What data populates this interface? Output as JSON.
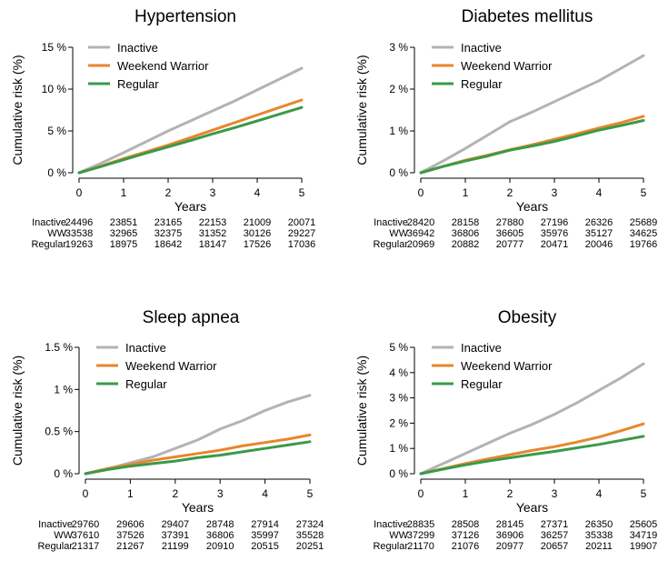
{
  "chart_data": [
    {
      "type": "line",
      "title": "Hypertension",
      "xlabel": "Years",
      "ylabel": "Cumulative risk (%)",
      "xlim": [
        0,
        5
      ],
      "ylim": [
        0,
        15
      ],
      "x_ticks": [
        "0",
        "1",
        "2",
        "3",
        "4",
        "5"
      ],
      "y_ticks": [
        {
          "value": 0,
          "label": "0 %"
        },
        {
          "value": 5,
          "label": "5 %"
        },
        {
          "value": 10,
          "label": "10 %"
        },
        {
          "value": 15,
          "label": "15 %"
        }
      ],
      "legend_position": "top-left",
      "series": [
        {
          "name": "Inactive",
          "color": "#b3b3b3",
          "x": [
            0,
            0.5,
            1,
            1.5,
            2,
            2.5,
            3,
            3.5,
            4,
            4.5,
            5
          ],
          "y": [
            0,
            1.15,
            2.4,
            3.7,
            5.0,
            6.2,
            7.4,
            8.6,
            9.9,
            11.2,
            12.5
          ]
        },
        {
          "name": "Weekend Warrior",
          "color": "#e8862c",
          "x": [
            0,
            0.5,
            1,
            1.5,
            2,
            2.5,
            3,
            3.5,
            4,
            4.5,
            5
          ],
          "y": [
            0,
            0.8,
            1.7,
            2.5,
            3.3,
            4.2,
            5.1,
            6.0,
            6.9,
            7.8,
            8.7
          ]
        },
        {
          "name": "Regular",
          "color": "#3a9a48",
          "x": [
            0,
            0.5,
            1,
            1.5,
            2,
            2.5,
            3,
            3.5,
            4,
            4.5,
            5
          ],
          "y": [
            0,
            0.75,
            1.55,
            2.35,
            3.1,
            3.85,
            4.65,
            5.4,
            6.2,
            7.0,
            7.8
          ]
        }
      ],
      "risk_table": {
        "rows": [
          {
            "label": "Inactive",
            "values": [
              "24496",
              "23851",
              "23165",
              "22153",
              "21009",
              "20071"
            ]
          },
          {
            "label": "WW",
            "values": [
              "33538",
              "32965",
              "32375",
              "31352",
              "30126",
              "29227"
            ]
          },
          {
            "label": "Regular",
            "values": [
              "19263",
              "18975",
              "18642",
              "18147",
              "17526",
              "17036"
            ]
          }
        ]
      }
    },
    {
      "type": "line",
      "title": "Diabetes mellitus",
      "xlabel": "Years",
      "ylabel": "Cumulative risk (%)",
      "xlim": [
        0,
        5
      ],
      "ylim": [
        0,
        3
      ],
      "x_ticks": [
        "0",
        "1",
        "2",
        "3",
        "4",
        "5"
      ],
      "y_ticks": [
        {
          "value": 0,
          "label": "0 %"
        },
        {
          "value": 1,
          "label": "1 %"
        },
        {
          "value": 2,
          "label": "2 %"
        },
        {
          "value": 3,
          "label": "3 %"
        }
      ],
      "legend_position": "top-left",
      "series": [
        {
          "name": "Inactive",
          "color": "#b3b3b3",
          "x": [
            0,
            0.5,
            1,
            1.5,
            2,
            2.5,
            3,
            3.5,
            4,
            4.5,
            5
          ],
          "y": [
            0,
            0.28,
            0.58,
            0.9,
            1.22,
            1.45,
            1.7,
            1.95,
            2.2,
            2.5,
            2.8
          ]
        },
        {
          "name": "Weekend Warrior",
          "color": "#e8862c",
          "x": [
            0,
            0.5,
            1,
            1.5,
            2,
            2.5,
            3,
            3.5,
            4,
            4.5,
            5
          ],
          "y": [
            0,
            0.15,
            0.3,
            0.42,
            0.55,
            0.67,
            0.8,
            0.93,
            1.07,
            1.2,
            1.35
          ]
        },
        {
          "name": "Regular",
          "color": "#3a9a48",
          "x": [
            0,
            0.5,
            1,
            1.5,
            2,
            2.5,
            3,
            3.5,
            4,
            4.5,
            5
          ],
          "y": [
            0,
            0.15,
            0.28,
            0.4,
            0.54,
            0.64,
            0.75,
            0.88,
            1.02,
            1.13,
            1.25
          ]
        }
      ],
      "risk_table": {
        "rows": [
          {
            "label": "Inactive",
            "values": [
              "28420",
              "28158",
              "27880",
              "27196",
              "26326",
              "25689"
            ]
          },
          {
            "label": "WW",
            "values": [
              "36942",
              "36806",
              "36605",
              "35976",
              "35127",
              "34625"
            ]
          },
          {
            "label": "Regular",
            "values": [
              "20969",
              "20882",
              "20777",
              "20471",
              "20046",
              "19766"
            ]
          }
        ]
      }
    },
    {
      "type": "line",
      "title": "Sleep apnea",
      "xlabel": "Years",
      "ylabel": "Cumulative risk (%)",
      "xlim": [
        0,
        5
      ],
      "ylim": [
        0,
        1.5
      ],
      "x_ticks": [
        "0",
        "1",
        "2",
        "3",
        "4",
        "5"
      ],
      "y_ticks": [
        {
          "value": 0,
          "label": "0 %"
        },
        {
          "value": 0.5,
          "label": "0.5 %"
        },
        {
          "value": 1,
          "label": "1 %"
        },
        {
          "value": 1.5,
          "label": "1.5 %"
        }
      ],
      "legend_position": "top-right",
      "series": [
        {
          "name": "Inactive",
          "color": "#b3b3b3",
          "x": [
            0,
            0.5,
            1,
            1.5,
            2,
            2.5,
            3,
            3.5,
            4,
            4.5,
            5
          ],
          "y": [
            0,
            0.06,
            0.13,
            0.2,
            0.3,
            0.4,
            0.53,
            0.63,
            0.75,
            0.85,
            0.93
          ]
        },
        {
          "name": "Weekend Warrior",
          "color": "#e8862c",
          "x": [
            0,
            0.5,
            1,
            1.5,
            2,
            2.5,
            3,
            3.5,
            4,
            4.5,
            5
          ],
          "y": [
            0,
            0.06,
            0.11,
            0.16,
            0.2,
            0.24,
            0.28,
            0.33,
            0.37,
            0.41,
            0.46
          ]
        },
        {
          "name": "Regular",
          "color": "#3a9a48",
          "x": [
            0,
            0.5,
            1,
            1.5,
            2,
            2.5,
            3,
            3.5,
            4,
            4.5,
            5
          ],
          "y": [
            0,
            0.05,
            0.09,
            0.12,
            0.15,
            0.19,
            0.22,
            0.26,
            0.3,
            0.34,
            0.38
          ]
        }
      ],
      "risk_table": {
        "rows": [
          {
            "label": "Inactive",
            "values": [
              "29760",
              "29606",
              "29407",
              "28748",
              "27914",
              "27324"
            ]
          },
          {
            "label": "WW",
            "values": [
              "37610",
              "37526",
              "37391",
              "36806",
              "35997",
              "35528"
            ]
          },
          {
            "label": "Regular",
            "values": [
              "21317",
              "21267",
              "21199",
              "20910",
              "20515",
              "20251"
            ]
          }
        ]
      }
    },
    {
      "type": "line",
      "title": "Obesity",
      "xlabel": "Years",
      "ylabel": "Cumulative risk (%)",
      "xlim": [
        0,
        5
      ],
      "ylim": [
        0,
        5
      ],
      "x_ticks": [
        "0",
        "1",
        "2",
        "3",
        "4",
        "5"
      ],
      "y_ticks": [
        {
          "value": 0,
          "label": "0 %"
        },
        {
          "value": 1,
          "label": "1 %"
        },
        {
          "value": 2,
          "label": "2 %"
        },
        {
          "value": 3,
          "label": "3 %"
        },
        {
          "value": 4,
          "label": "4 %"
        },
        {
          "value": 5,
          "label": "5 %"
        }
      ],
      "legend_position": "top-right",
      "series": [
        {
          "name": "Inactive",
          "color": "#b3b3b3",
          "x": [
            0,
            0.5,
            1,
            1.5,
            2,
            2.5,
            3,
            3.5,
            4,
            4.5,
            5
          ],
          "y": [
            0,
            0.4,
            0.8,
            1.2,
            1.6,
            1.95,
            2.35,
            2.8,
            3.3,
            3.8,
            4.35
          ]
        },
        {
          "name": "Weekend Warrior",
          "color": "#e8862c",
          "x": [
            0,
            0.5,
            1,
            1.5,
            2,
            2.5,
            3,
            3.5,
            4,
            4.5,
            5
          ],
          "y": [
            0,
            0.2,
            0.4,
            0.58,
            0.75,
            0.92,
            1.07,
            1.25,
            1.45,
            1.7,
            1.97
          ]
        },
        {
          "name": "Regular",
          "color": "#3a9a48",
          "x": [
            0,
            0.5,
            1,
            1.5,
            2,
            2.5,
            3,
            3.5,
            4,
            4.5,
            5
          ],
          "y": [
            0,
            0.18,
            0.35,
            0.5,
            0.63,
            0.76,
            0.88,
            1.02,
            1.16,
            1.32,
            1.48
          ]
        }
      ],
      "risk_table": {
        "rows": [
          {
            "label": "Inactive",
            "values": [
              "28835",
              "28508",
              "28145",
              "27371",
              "26350",
              "25605"
            ]
          },
          {
            "label": "WW",
            "values": [
              "37299",
              "37126",
              "36906",
              "36257",
              "35338",
              "34719"
            ]
          },
          {
            "label": "Regular",
            "values": [
              "21170",
              "21076",
              "20977",
              "20657",
              "20211",
              "19907"
            ]
          }
        ]
      }
    }
  ]
}
